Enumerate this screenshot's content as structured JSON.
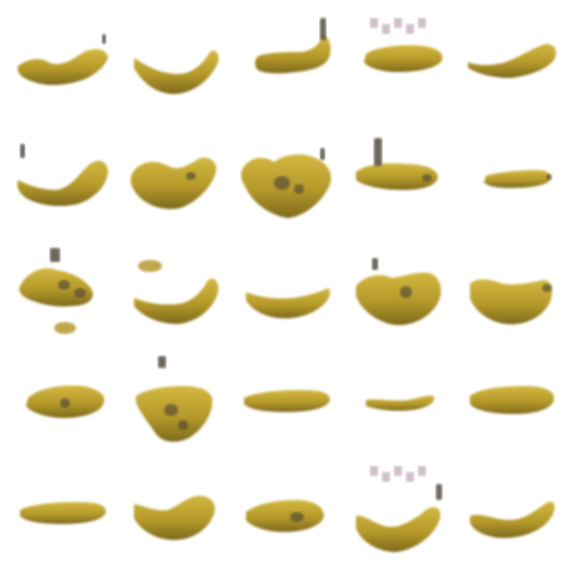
{
  "grid": {
    "rows": 5,
    "cols": 5,
    "subject": "banana",
    "colors": {
      "fruit": "#b5992a",
      "fruit_highlight": "#d2b840",
      "fruit_shadow": "#7d6a1c",
      "bruise": "#4a3f36",
      "noise": "#7a4a6a",
      "background": "#ffffff"
    },
    "tiles": [
      {
        "shape": "curve-left-hump"
      },
      {
        "shape": "smile-curve"
      },
      {
        "shape": "hooked-stem"
      },
      {
        "shape": "flat-noisy-top"
      },
      {
        "shape": "slim-diagonal"
      },
      {
        "shape": "u-curve"
      },
      {
        "shape": "blob-curve"
      },
      {
        "shape": "heart-blob"
      },
      {
        "shape": "stubby-with-stem"
      },
      {
        "shape": "slim-flat"
      },
      {
        "shape": "noisy-blob"
      },
      {
        "shape": "crescent-with-fleck"
      },
      {
        "shape": "shallow-bowl"
      },
      {
        "shape": "tilted-blob"
      },
      {
        "shape": "round-bowl"
      },
      {
        "shape": "short-oval"
      },
      {
        "shape": "drooping-blob"
      },
      {
        "shape": "long-flat"
      },
      {
        "shape": "thin-sliver"
      },
      {
        "shape": "long-oval"
      },
      {
        "shape": "long-flat"
      },
      {
        "shape": "saddle-curve"
      },
      {
        "shape": "oval-bruised"
      },
      {
        "shape": "v-curve-stem"
      },
      {
        "shape": "wavy-slim"
      }
    ]
  }
}
